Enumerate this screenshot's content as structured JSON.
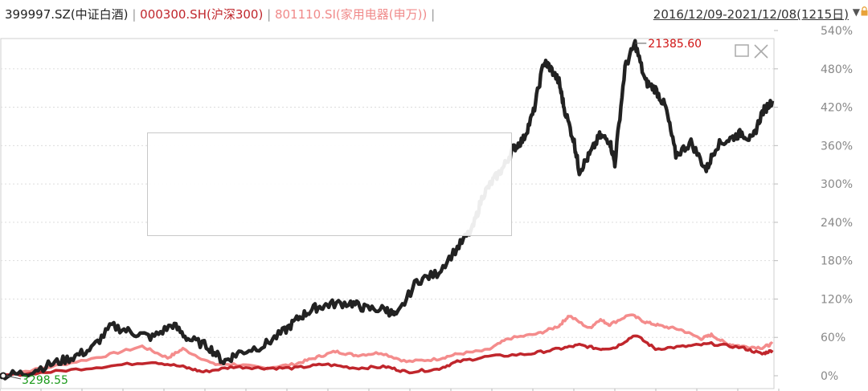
{
  "header": {
    "series_labels": [
      {
        "text": "399997.SZ(中证白酒)",
        "color": "#222222"
      },
      {
        "text": "000300.SH(沪深300)",
        "color": "#c0262c"
      },
      {
        "text": "801110.SI(家用电器(申万))",
        "color": "#f08a8a"
      }
    ],
    "separator": "|",
    "date_range": "2016/12/09-2021/12/08(1215日)"
  },
  "chart_data": {
    "type": "line",
    "y_axis_labels": [
      "540%",
      "480%",
      "420%",
      "360%",
      "300%",
      "240%",
      "180%",
      "120%",
      "60%",
      "0%"
    ],
    "ylim": [
      0,
      540
    ],
    "grid": true,
    "annotations": {
      "max_value": "21385.60",
      "min_value": "3298.55"
    },
    "series": [
      {
        "name": "399997.SZ(中证白酒)",
        "color": "#222222",
        "points": [
          [
            0,
            0
          ],
          [
            5,
            4
          ],
          [
            10,
            18
          ],
          [
            14,
            28
          ],
          [
            18,
            42
          ],
          [
            22,
            78
          ],
          [
            26,
            68
          ],
          [
            30,
            60
          ],
          [
            34,
            80
          ],
          [
            37,
            58
          ],
          [
            41,
            46
          ],
          [
            44,
            22
          ],
          [
            47,
            36
          ],
          [
            52,
            48
          ],
          [
            56,
            70
          ],
          [
            59,
            92
          ],
          [
            62,
            106
          ],
          [
            65,
            112
          ],
          [
            69,
            114
          ],
          [
            72,
            105
          ],
          [
            76,
            104
          ],
          [
            78,
            92
          ],
          [
            82,
            148
          ],
          [
            86,
            160
          ],
          [
            90,
            200
          ],
          [
            93,
            230
          ],
          [
            95,
            282
          ],
          [
            97,
            305
          ],
          [
            99,
            325
          ],
          [
            101,
            355
          ],
          [
            103,
            370
          ],
          [
            105,
            412
          ],
          [
            107,
            490
          ],
          [
            108,
            485
          ],
          [
            110,
            460
          ],
          [
            111,
            420
          ],
          [
            113,
            365
          ],
          [
            114,
            320
          ],
          [
            116,
            345
          ],
          [
            118,
            375
          ],
          [
            120,
            368
          ],
          [
            121,
            332
          ],
          [
            123,
            482
          ],
          [
            125,
            520
          ],
          [
            127,
            460
          ],
          [
            129,
            448
          ],
          [
            131,
            420
          ],
          [
            133,
            345
          ],
          [
            136,
            365
          ],
          [
            139,
            322
          ],
          [
            141,
            360
          ],
          [
            144,
            372
          ],
          [
            146,
            380
          ],
          [
            148,
            368
          ],
          [
            150,
            412
          ],
          [
            152,
            430
          ]
        ]
      },
      {
        "name": "000300.SH(沪深300)",
        "color": "#c0262c",
        "points": [
          [
            0,
            0
          ],
          [
            10,
            6
          ],
          [
            20,
            14
          ],
          [
            30,
            22
          ],
          [
            36,
            14
          ],
          [
            40,
            6
          ],
          [
            46,
            14
          ],
          [
            52,
            12
          ],
          [
            58,
            12
          ],
          [
            64,
            18
          ],
          [
            70,
            12
          ],
          [
            76,
            14
          ],
          [
            80,
            6
          ],
          [
            86,
            10
          ],
          [
            90,
            22
          ],
          [
            96,
            30
          ],
          [
            104,
            34
          ],
          [
            110,
            42
          ],
          [
            114,
            48
          ],
          [
            118,
            42
          ],
          [
            121,
            44
          ],
          [
            125,
            64
          ],
          [
            129,
            42
          ],
          [
            135,
            46
          ],
          [
            140,
            50
          ],
          [
            146,
            44
          ],
          [
            150,
            34
          ],
          [
            152,
            40
          ]
        ]
      },
      {
        "name": "801110.SI(家用电器(申万))",
        "color": "#f48c8c",
        "points": [
          [
            0,
            0
          ],
          [
            10,
            14
          ],
          [
            20,
            30
          ],
          [
            28,
            46
          ],
          [
            33,
            28
          ],
          [
            36,
            42
          ],
          [
            42,
            18
          ],
          [
            46,
            18
          ],
          [
            52,
            12
          ],
          [
            58,
            18
          ],
          [
            62,
            28
          ],
          [
            66,
            38
          ],
          [
            70,
            32
          ],
          [
            75,
            36
          ],
          [
            80,
            22
          ],
          [
            86,
            26
          ],
          [
            90,
            34
          ],
          [
            96,
            40
          ],
          [
            100,
            58
          ],
          [
            106,
            66
          ],
          [
            110,
            78
          ],
          [
            112,
            94
          ],
          [
            116,
            74
          ],
          [
            118,
            88
          ],
          [
            120,
            80
          ],
          [
            124,
            96
          ],
          [
            127,
            84
          ],
          [
            130,
            78
          ],
          [
            134,
            72
          ],
          [
            138,
            58
          ],
          [
            140,
            64
          ],
          [
            143,
            50
          ],
          [
            146,
            46
          ],
          [
            150,
            44
          ],
          [
            152,
            50
          ]
        ]
      }
    ]
  }
}
